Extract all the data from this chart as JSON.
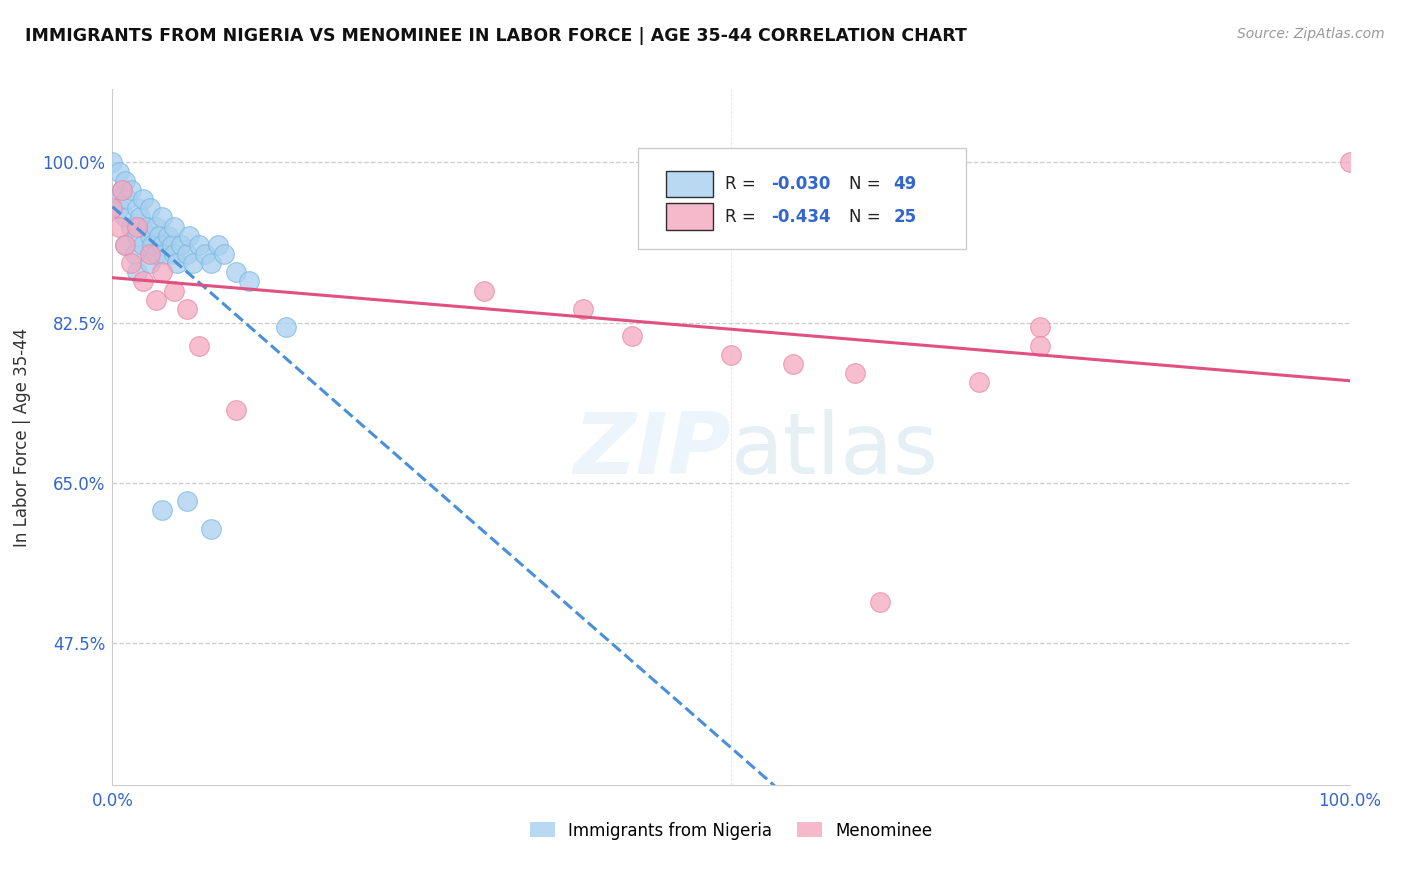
{
  "title": "IMMIGRANTS FROM NIGERIA VS MENOMINEE IN LABOR FORCE | AGE 35-44 CORRELATION CHART",
  "source_text": "Source: ZipAtlas.com",
  "ylabel": "In Labor Force | Age 35-44",
  "xlim": [
    0.0,
    1.0
  ],
  "ylim": [
    0.32,
    1.08
  ],
  "y_ticks": [
    0.475,
    0.65,
    0.825,
    1.0
  ],
  "y_tick_labels": [
    "47.5%",
    "65.0%",
    "82.5%",
    "100.0%"
  ],
  "x_tick_labels": [
    "0.0%",
    "100.0%"
  ],
  "color_nigeria": "#a8d0ef",
  "color_menominee": "#f4a8be",
  "trendline_nigeria_color": "#4a90d9",
  "trendline_menominee_color": "#e05080",
  "background_color": "#ffffff",
  "grid_color": "#cccccc",
  "nigeria_x": [
    0.0,
    0.0,
    0.005,
    0.005,
    0.008,
    0.01,
    0.01,
    0.01,
    0.012,
    0.015,
    0.015,
    0.018,
    0.02,
    0.02,
    0.02,
    0.022,
    0.025,
    0.025,
    0.028,
    0.03,
    0.03,
    0.03,
    0.032,
    0.035,
    0.035,
    0.038,
    0.04,
    0.04,
    0.042,
    0.045,
    0.048,
    0.05,
    0.05,
    0.052,
    0.055,
    0.06,
    0.062,
    0.065,
    0.07,
    0.075,
    0.08,
    0.085,
    0.09,
    0.1,
    0.11,
    0.14,
    0.04,
    0.06,
    0.08
  ],
  "nigeria_y": [
    1.0,
    0.96,
    0.99,
    0.95,
    0.97,
    0.98,
    0.94,
    0.91,
    0.96,
    0.97,
    0.93,
    0.9,
    0.95,
    0.92,
    0.88,
    0.94,
    0.96,
    0.91,
    0.93,
    0.95,
    0.92,
    0.89,
    0.91,
    0.93,
    0.9,
    0.92,
    0.94,
    0.91,
    0.9,
    0.92,
    0.91,
    0.93,
    0.9,
    0.89,
    0.91,
    0.9,
    0.92,
    0.89,
    0.91,
    0.9,
    0.89,
    0.91,
    0.9,
    0.88,
    0.87,
    0.82,
    0.62,
    0.63,
    0.6
  ],
  "menominee_x": [
    0.0,
    0.005,
    0.008,
    0.01,
    0.015,
    0.02,
    0.025,
    0.03,
    0.035,
    0.04,
    0.05,
    0.06,
    0.07,
    0.1,
    0.3,
    0.38,
    0.42,
    0.5,
    0.55,
    0.6,
    0.62,
    0.7,
    0.75,
    0.75,
    1.0
  ],
  "menominee_y": [
    0.95,
    0.93,
    0.97,
    0.91,
    0.89,
    0.93,
    0.87,
    0.9,
    0.85,
    0.88,
    0.86,
    0.84,
    0.8,
    0.73,
    0.86,
    0.84,
    0.81,
    0.79,
    0.78,
    0.77,
    0.52,
    0.76,
    0.82,
    0.8,
    1.0
  ]
}
